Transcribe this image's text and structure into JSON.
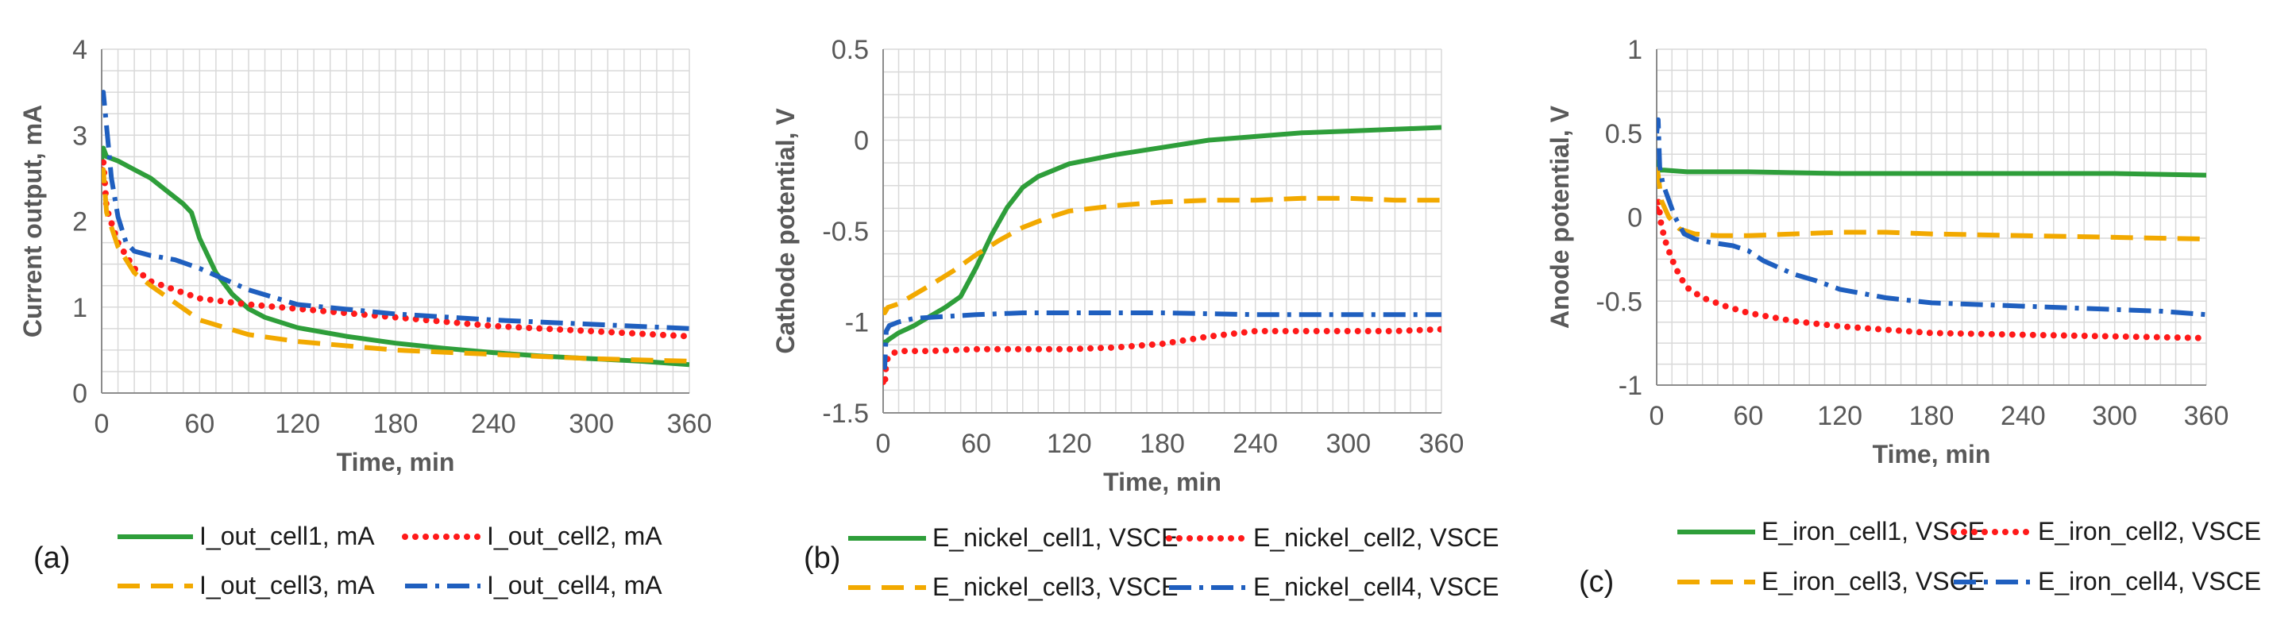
{
  "figure": {
    "panels": [
      "(a)",
      "(b)",
      "(c)"
    ]
  },
  "colors": {
    "cell1": "#2e9e3a",
    "cell2": "#ff1a1a",
    "cell3": "#f2a900",
    "cell4": "#1f5fbf",
    "grid": "#d9d9d9",
    "axis": "#8c8c8c"
  },
  "chart_data": [
    {
      "panel": "(a)",
      "type": "line",
      "title": "",
      "xlabel": "Time, min",
      "ylabel": "Current output, mA",
      "xlim": [
        0,
        360
      ],
      "ylim": [
        0,
        4
      ],
      "xticks": [
        0,
        60,
        120,
        180,
        240,
        300,
        360
      ],
      "yticks": [
        0,
        1,
        2,
        3,
        4
      ],
      "xtick_labels": [
        "0",
        "60",
        "120",
        "180",
        "240",
        "300",
        "360"
      ],
      "ytick_labels": [
        "0",
        "1",
        "2",
        "3",
        "4"
      ],
      "grid": true,
      "legend_position": "bottom",
      "series": [
        {
          "name": "I_out_cell1, mA",
          "x": [
            0,
            1,
            3,
            10,
            20,
            30,
            40,
            50,
            55,
            60,
            70,
            80,
            90,
            100,
            120,
            150,
            180,
            210,
            240,
            270,
            300,
            330,
            360
          ],
          "y": [
            2.7,
            2.85,
            2.75,
            2.7,
            2.6,
            2.5,
            2.35,
            2.2,
            2.1,
            1.8,
            1.4,
            1.15,
            0.98,
            0.88,
            0.76,
            0.66,
            0.58,
            0.52,
            0.47,
            0.43,
            0.4,
            0.37,
            0.33
          ]
        },
        {
          "name": "I_out_cell2, mA",
          "x": [
            0,
            1,
            3,
            10,
            20,
            30,
            45,
            60,
            90,
            120,
            180,
            240,
            300,
            360
          ],
          "y": [
            2.6,
            2.7,
            2.15,
            1.75,
            1.45,
            1.3,
            1.2,
            1.1,
            1.03,
            0.98,
            0.88,
            0.78,
            0.72,
            0.66
          ]
        },
        {
          "name": "I_out_cell3, mA",
          "x": [
            0,
            1,
            3,
            10,
            20,
            30,
            45,
            60,
            90,
            120,
            180,
            240,
            300,
            360
          ],
          "y": [
            2.5,
            2.6,
            2.1,
            1.7,
            1.4,
            1.25,
            1.05,
            0.85,
            0.68,
            0.6,
            0.5,
            0.45,
            0.4,
            0.37
          ]
        },
        {
          "name": "I_out_cell4, mA",
          "x": [
            0,
            1,
            3,
            6,
            10,
            15,
            20,
            30,
            45,
            60,
            90,
            120,
            180,
            240,
            300,
            360
          ],
          "y": [
            3.4,
            3.5,
            3.1,
            2.5,
            2.05,
            1.75,
            1.65,
            1.6,
            1.55,
            1.45,
            1.2,
            1.03,
            0.92,
            0.85,
            0.8,
            0.75
          ]
        }
      ]
    },
    {
      "panel": "(b)",
      "type": "line",
      "title": "",
      "xlabel": "Time, min",
      "ylabel": "Cathode potential, V",
      "xlim": [
        0,
        360
      ],
      "ylim": [
        -1.5,
        0.5
      ],
      "xticks": [
        0,
        60,
        120,
        180,
        240,
        300,
        360
      ],
      "yticks": [
        -1.5,
        -1,
        -0.5,
        0,
        0.5
      ],
      "xtick_labels": [
        "0",
        "60",
        "120",
        "180",
        "240",
        "300",
        "360"
      ],
      "ytick_labels": [
        "-1.5",
        "-1",
        "-0.5",
        "0",
        "0.5"
      ],
      "grid": true,
      "legend_position": "bottom",
      "series": [
        {
          "name": "E_nickel_cell1, VSCE",
          "x": [
            0,
            1,
            3,
            10,
            20,
            30,
            40,
            50,
            60,
            70,
            80,
            90,
            100,
            120,
            150,
            180,
            210,
            240,
            270,
            300,
            330,
            360
          ],
          "y": [
            -1.1,
            -1.12,
            -1.1,
            -1.06,
            -1.02,
            -0.97,
            -0.92,
            -0.86,
            -0.7,
            -0.52,
            -0.37,
            -0.26,
            -0.2,
            -0.13,
            -0.08,
            -0.04,
            0.0,
            0.02,
            0.04,
            0.05,
            0.06,
            0.07
          ]
        },
        {
          "name": "E_nickel_cell2, VSCE",
          "x": [
            0,
            1,
            2,
            4,
            10,
            30,
            60,
            90,
            120,
            150,
            180,
            210,
            240,
            270,
            300,
            330,
            360
          ],
          "y": [
            -1.33,
            -1.35,
            -1.22,
            -1.18,
            -1.16,
            -1.16,
            -1.15,
            -1.15,
            -1.15,
            -1.14,
            -1.12,
            -1.08,
            -1.05,
            -1.05,
            -1.05,
            -1.05,
            -1.04
          ]
        },
        {
          "name": "E_nickel_cell3, VSCE",
          "x": [
            0,
            1,
            3,
            10,
            20,
            30,
            45,
            60,
            75,
            90,
            105,
            120,
            150,
            180,
            210,
            240,
            270,
            300,
            330,
            360
          ],
          "y": [
            -0.92,
            -0.95,
            -0.92,
            -0.9,
            -0.85,
            -0.8,
            -0.72,
            -0.63,
            -0.55,
            -0.48,
            -0.43,
            -0.39,
            -0.36,
            -0.34,
            -0.33,
            -0.33,
            -0.32,
            -0.32,
            -0.33,
            -0.33
          ]
        },
        {
          "name": "E_nickel_cell4, VSCE",
          "x": [
            0,
            1,
            2,
            4,
            10,
            20,
            40,
            60,
            90,
            120,
            180,
            240,
            300,
            360
          ],
          "y": [
            -1.2,
            -1.25,
            -1.05,
            -1.02,
            -1.0,
            -0.98,
            -0.97,
            -0.96,
            -0.95,
            -0.95,
            -0.95,
            -0.96,
            -0.96,
            -0.96
          ]
        }
      ]
    },
    {
      "panel": "(c)",
      "type": "line",
      "title": "",
      "xlabel": "Time, min",
      "ylabel": "Anode potential, V",
      "xlim": [
        0,
        360
      ],
      "ylim": [
        -1,
        1
      ],
      "xticks": [
        0,
        60,
        120,
        180,
        240,
        300,
        360
      ],
      "yticks": [
        -1,
        -0.5,
        0,
        0.5,
        1
      ],
      "xtick_labels": [
        "0",
        "60",
        "120",
        "180",
        "240",
        "300",
        "360"
      ],
      "ytick_labels": [
        "-1",
        "-0.5",
        "0",
        "0.5",
        "1"
      ],
      "grid": true,
      "legend_position": "bottom",
      "series": [
        {
          "name": "E_iron_cell1, VSCE",
          "x": [
            0,
            1,
            2,
            5,
            20,
            60,
            120,
            180,
            240,
            300,
            360
          ],
          "y": [
            0.3,
            0.33,
            0.28,
            0.28,
            0.27,
            0.27,
            0.26,
            0.26,
            0.26,
            0.26,
            0.25
          ]
        },
        {
          "name": "E_iron_cell2, VSCE",
          "x": [
            0,
            1,
            3,
            6,
            10,
            15,
            20,
            30,
            45,
            60,
            90,
            120,
            150,
            180,
            240,
            300,
            360
          ],
          "y": [
            0.05,
            0.1,
            -0.05,
            -0.15,
            -0.25,
            -0.35,
            -0.42,
            -0.48,
            -0.53,
            -0.57,
            -0.62,
            -0.65,
            -0.67,
            -0.69,
            -0.7,
            -0.71,
            -0.72
          ]
        },
        {
          "name": "E_iron_cell3, VSCE",
          "x": [
            0,
            1,
            3,
            8,
            15,
            25,
            40,
            60,
            90,
            120,
            150,
            180,
            240,
            300,
            360
          ],
          "y": [
            0.3,
            0.25,
            0.1,
            0.0,
            -0.07,
            -0.1,
            -0.11,
            -0.11,
            -0.1,
            -0.09,
            -0.09,
            -0.1,
            -0.11,
            -0.12,
            -0.13
          ]
        },
        {
          "name": "E_iron_cell4, VSCE",
          "x": [
            0,
            1,
            2,
            4,
            8,
            12,
            18,
            25,
            35,
            50,
            60,
            70,
            80,
            90,
            105,
            120,
            150,
            180,
            210,
            240,
            270,
            300,
            330,
            360
          ],
          "y": [
            0.5,
            0.58,
            0.3,
            0.2,
            0.1,
            0.0,
            -0.1,
            -0.13,
            -0.15,
            -0.17,
            -0.2,
            -0.26,
            -0.3,
            -0.34,
            -0.38,
            -0.43,
            -0.48,
            -0.51,
            -0.52,
            -0.53,
            -0.54,
            -0.55,
            -0.56,
            -0.58
          ]
        }
      ]
    }
  ]
}
